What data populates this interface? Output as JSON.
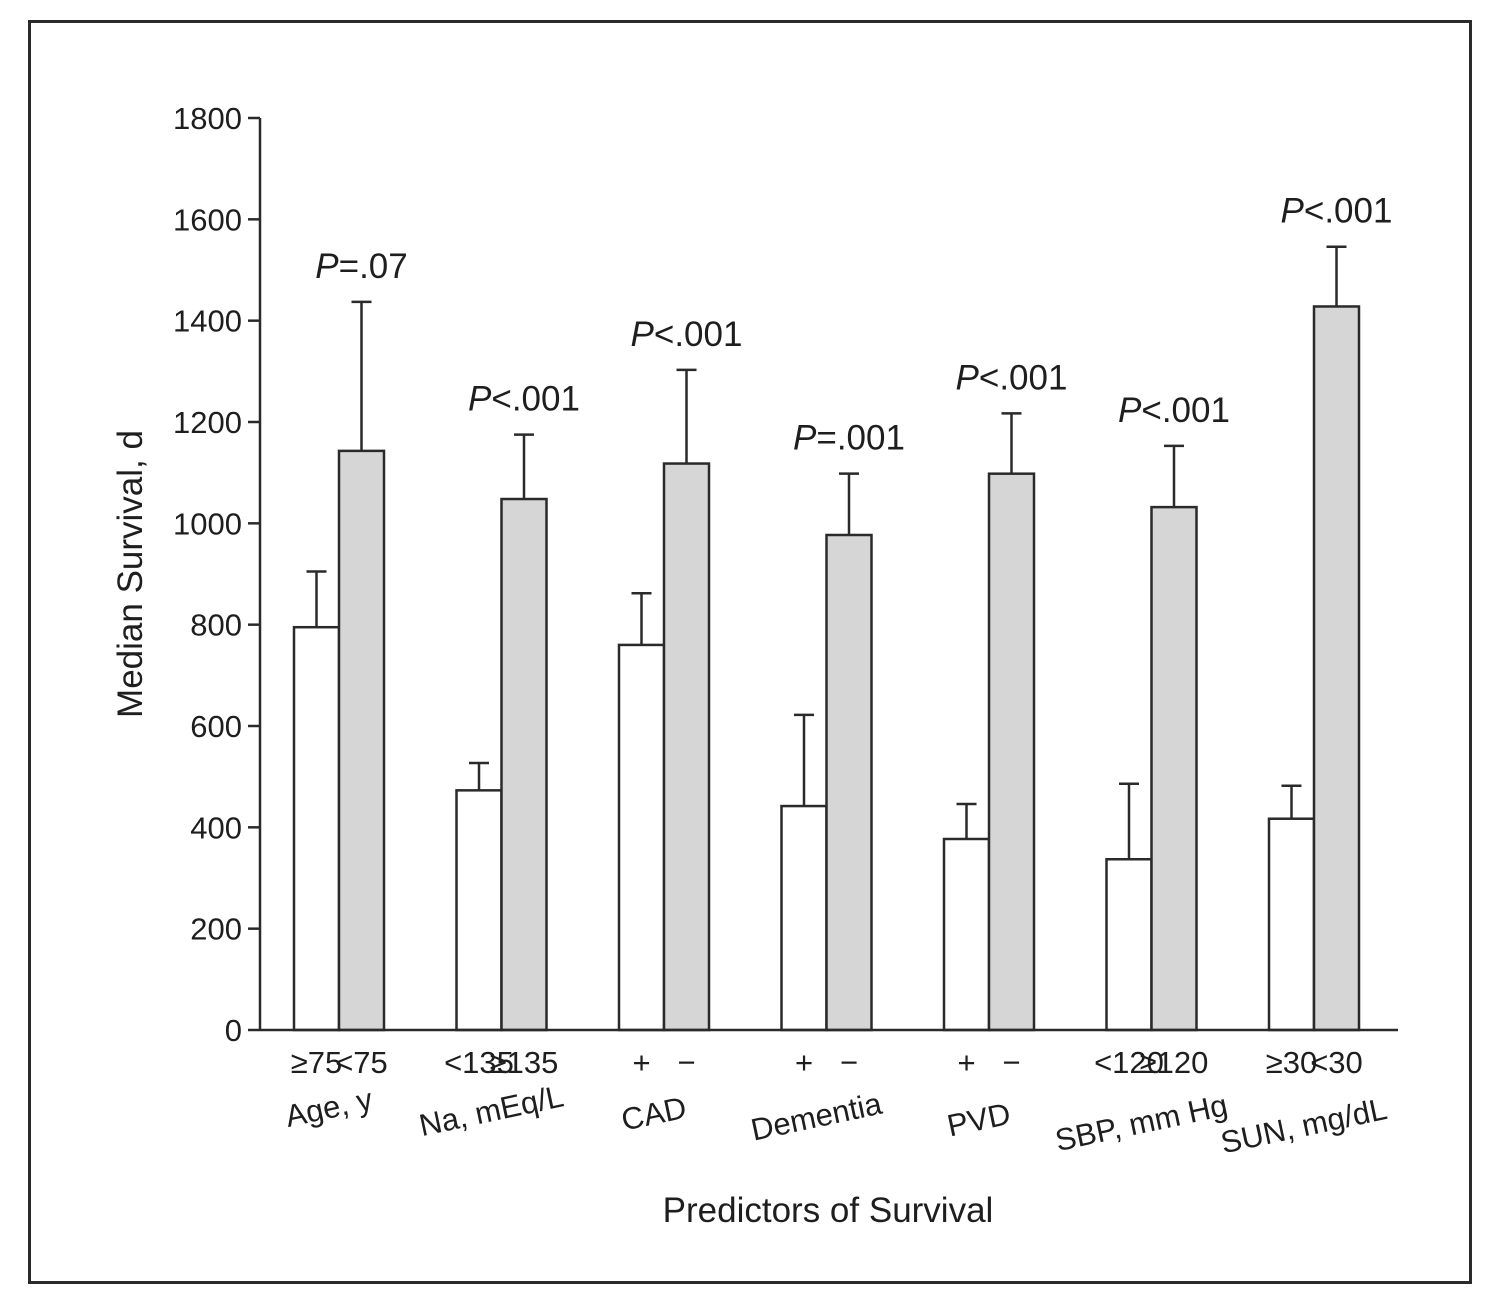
{
  "chart_data": {
    "type": "bar",
    "xlabel": "Predictors of Survival",
    "ylabel": "Median Survival, d",
    "ylim": [
      0,
      1800
    ],
    "yticks": [
      0,
      200,
      400,
      600,
      800,
      1000,
      1200,
      1400,
      1600,
      1800
    ],
    "grid": false,
    "colors": {
      "first": "#ffffff",
      "second": "#d6d6d6",
      "stroke": "#2a2a2a"
    },
    "groups": [
      {
        "label": "Age, y",
        "conditions": [
          "≥75",
          "<75"
        ],
        "values": [
          795,
          1143
        ],
        "error_upper": [
          905,
          1437
        ],
        "p_prefix": "P",
        "p_value": "=.07"
      },
      {
        "label": "Na, mEq/L",
        "conditions": [
          "<135",
          "≥135"
        ],
        "values": [
          473,
          1048
        ],
        "error_upper": [
          527,
          1175
        ],
        "p_prefix": "P",
        "p_value": "<.001"
      },
      {
        "label": "CAD",
        "conditions": [
          "+",
          "−"
        ],
        "values": [
          760,
          1118
        ],
        "error_upper": [
          862,
          1303
        ],
        "p_prefix": "P",
        "p_value": "<.001"
      },
      {
        "label": "Dementia",
        "conditions": [
          "+",
          "−"
        ],
        "values": [
          442,
          977
        ],
        "error_upper": [
          622,
          1098
        ],
        "p_prefix": "P",
        "p_value": "=.001"
      },
      {
        "label": "PVD",
        "conditions": [
          "+",
          "−"
        ],
        "values": [
          377,
          1098
        ],
        "error_upper": [
          446,
          1217
        ],
        "p_prefix": "P",
        "p_value": "<.001"
      },
      {
        "label": "SBP, mm Hg",
        "conditions": [
          "<120",
          "≥120"
        ],
        "values": [
          337,
          1032
        ],
        "error_upper": [
          486,
          1153
        ],
        "p_prefix": "P",
        "p_value": "<.001"
      },
      {
        "label": "SUN, mg/dL",
        "conditions": [
          "≥30",
          "<30"
        ],
        "values": [
          417,
          1428
        ],
        "error_upper": [
          482,
          1546
        ],
        "p_prefix": "P",
        "p_value": "<.001"
      }
    ]
  }
}
